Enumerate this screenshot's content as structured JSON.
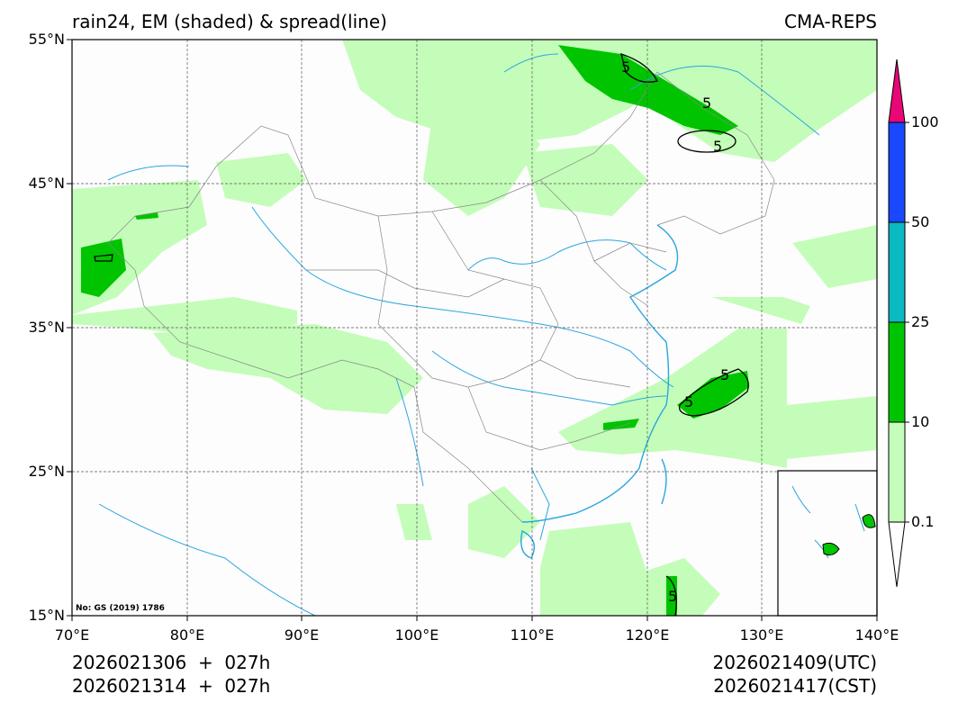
{
  "header": {
    "title_left": "rain24, EM (shaded) & spread(line)",
    "title_right": "CMA-REPS"
  },
  "axes": {
    "lat_ticks": [
      "55°N",
      "45°N",
      "35°N",
      "25°N",
      "15°N"
    ],
    "lon_ticks": [
      "70°E",
      "80°E",
      "90°E",
      "100°E",
      "110°E",
      "120°E",
      "130°E",
      "140°E"
    ]
  },
  "colorbar": {
    "labels": [
      "0.1",
      "10",
      "25",
      "50",
      "100"
    ],
    "colors": {
      "light_green": "#c4fdb9",
      "green": "#00c400",
      "cyan": "#0ab9c1",
      "blue": "#1948ff",
      "magenta": "#ea0676"
    }
  },
  "footer": {
    "init_utc": "2026021306  +  027h",
    "init_cst": "2026021314  +  027h",
    "valid_utc": "2026021409(UTC)",
    "valid_cst": "2026021417(CST)"
  },
  "map": {
    "review_number": "No: GS (2019) 1786",
    "contour_labels": [
      "5",
      "5",
      "5",
      "5",
      "5",
      "5"
    ]
  }
}
